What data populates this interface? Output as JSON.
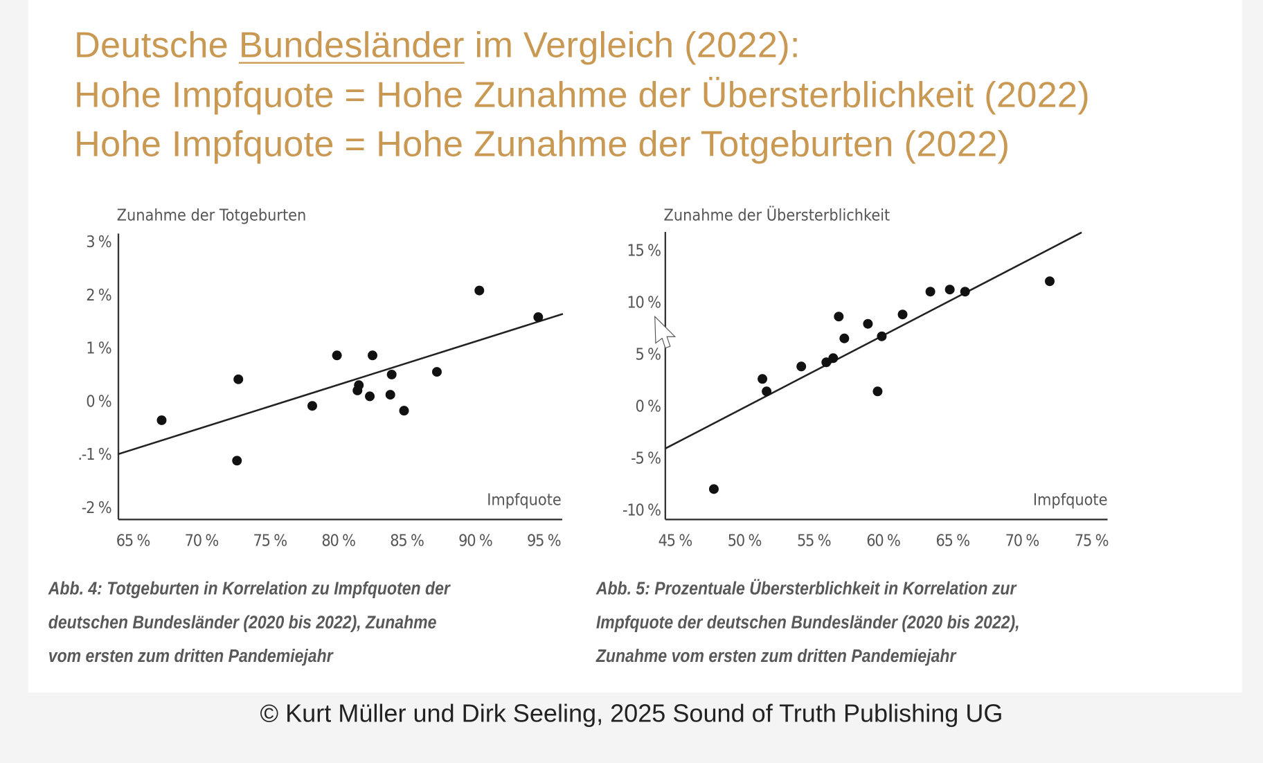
{
  "header": {
    "line1_pre": "Deutsche ",
    "line1_underlined": "Bundesländer",
    "line1_post": " im Vergleich (2022):",
    "line2": "Hohe Impfquote = Hohe Zunahme der Übersterblichkeit (2022)",
    "line3": "Hohe Impfquote = Hohe Zunahme der Totgeburten (2022)"
  },
  "colors": {
    "title": "#c99852",
    "points": "#111111",
    "axis": "#333333"
  },
  "chart_data": [
    {
      "type": "scatter",
      "ylabel": "Zunahme der Totgeburten",
      "xlabel": "Impfquote",
      "xlim": [
        64,
        96.5
      ],
      "ylim": [
        -2.2,
        3.2
      ],
      "xticks": [
        65,
        70,
        75,
        80,
        85,
        90,
        95
      ],
      "xtick_labels": [
        "65 %",
        "70 %",
        "75 %",
        "80 %",
        "85 %",
        "90 %",
        "95 %"
      ],
      "yticks": [
        3,
        2,
        1,
        0,
        -1,
        -2
      ],
      "ytick_labels": [
        "3 %",
        "2 %",
        "1 %",
        "0 %",
        ".-1 %",
        "-2 %"
      ],
      "points": [
        [
          67.1,
          -0.36
        ],
        [
          72.7,
          0.41
        ],
        [
          72.6,
          -1.12
        ],
        [
          78.1,
          -0.09
        ],
        [
          79.9,
          0.86
        ],
        [
          81.5,
          0.3
        ],
        [
          81.4,
          0.2
        ],
        [
          82.5,
          0.86
        ],
        [
          82.3,
          0.09
        ],
        [
          83.9,
          0.5
        ],
        [
          83.8,
          0.12
        ],
        [
          84.8,
          -0.18
        ],
        [
          87.2,
          0.55
        ],
        [
          90.3,
          2.08
        ],
        [
          94.6,
          1.58
        ]
      ],
      "trendline": [
        [
          63.9,
          -1.0
        ],
        [
          96.4,
          1.64
        ]
      ],
      "caption": [
        "Abb. 4: Totgeburten in Korrelation zu Impfquoten der",
        "deutschen Bundesländer (2020 bis 2022), Zunahme",
        "vom ersten zum dritten Pandemiejahr"
      ]
    },
    {
      "type": "scatter",
      "ylabel": "Zunahme der Übersterblichkeit",
      "xlabel": "Impfquote",
      "xlim": [
        44.3,
        76
      ],
      "ylim": [
        -11,
        17
      ],
      "xticks": [
        45,
        50,
        55,
        60,
        65,
        70,
        75
      ],
      "xtick_labels": [
        "45 %",
        "50 %",
        "55 %",
        "60 %",
        "65 %",
        "70 %",
        "75 %"
      ],
      "yticks": [
        15,
        10,
        5,
        0,
        -5,
        -10
      ],
      "ytick_labels": [
        "15 %",
        "10 %",
        "5 %",
        "0 %",
        "-5 %",
        "-10 %"
      ],
      "points": [
        [
          47.8,
          -8.0
        ],
        [
          51.3,
          2.6
        ],
        [
          51.6,
          1.4
        ],
        [
          54.1,
          3.8
        ],
        [
          55.9,
          4.2
        ],
        [
          56.4,
          4.6
        ],
        [
          56.8,
          8.6
        ],
        [
          57.2,
          6.5
        ],
        [
          58.9,
          7.9
        ],
        [
          59.6,
          1.4
        ],
        [
          59.9,
          6.7
        ],
        [
          61.4,
          8.8
        ],
        [
          63.4,
          11.0
        ],
        [
          64.8,
          11.2
        ],
        [
          65.9,
          11.0
        ],
        [
          72.0,
          12.0
        ]
      ],
      "trendline": [
        [
          44.3,
          -4.1
        ],
        [
          74.3,
          16.7
        ]
      ],
      "caption": [
        "Abb. 5: Prozentuale Übersterblichkeit in Korrelation zur",
        "Impfquote der deutschen Bundesländer (2020 bis 2022),",
        "Zunahme vom ersten zum dritten Pandemiejahr"
      ]
    }
  ],
  "footer": {
    "copyright": "© Kurt Müller und Dirk Seeling, 2025 Sound of Truth Publishing UG"
  }
}
